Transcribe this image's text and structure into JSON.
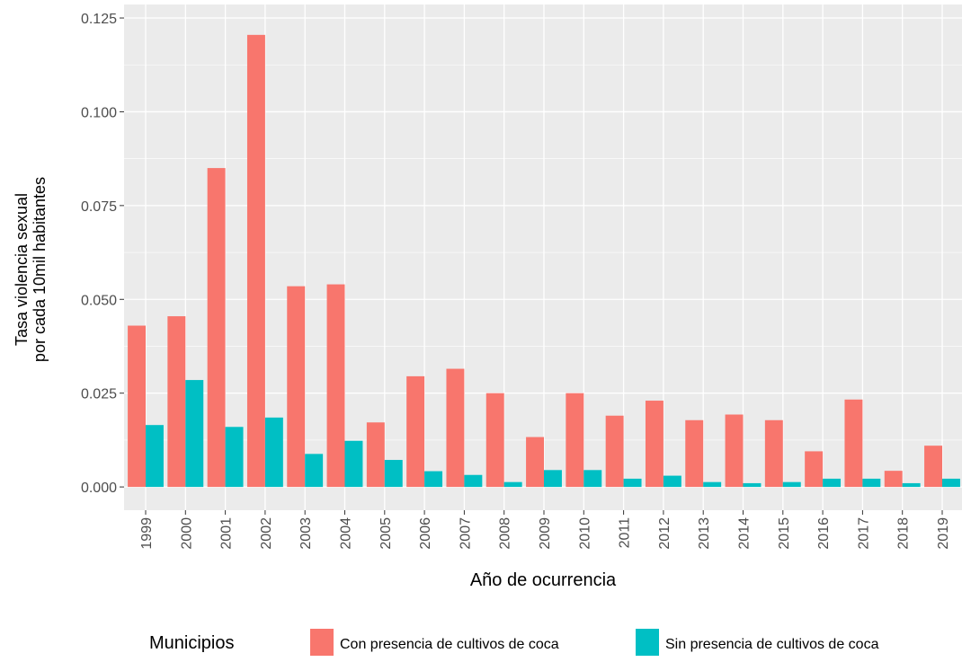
{
  "chart_data": {
    "type": "bar",
    "y_axis_label": [
      "Tasa violencia sexual",
      "por cada 10mil habitantes"
    ],
    "x_axis_label": "Año de ocurrencia",
    "legend_title": "Municipios",
    "legend_position": "bottom",
    "grid": true,
    "categories": [
      "1999",
      "2000",
      "2001",
      "2002",
      "2003",
      "2004",
      "2005",
      "2006",
      "2007",
      "2008",
      "2009",
      "2010",
      "2011",
      "2012",
      "2013",
      "2014",
      "2015",
      "2016",
      "2017",
      "2018",
      "2019"
    ],
    "series": [
      {
        "name": "Con presencia de cultivos de coca",
        "color": "#f8766d",
        "values": [
          0.043,
          0.0455,
          0.085,
          0.1205,
          0.0535,
          0.054,
          0.0172,
          0.0295,
          0.0315,
          0.025,
          0.0133,
          0.025,
          0.019,
          0.023,
          0.0178,
          0.0193,
          0.0178,
          0.0095,
          0.0233,
          0.0043,
          0.011
        ]
      },
      {
        "name": "Sin presencia de cultivos de coca",
        "color": "#00bfc4",
        "values": [
          0.0165,
          0.0285,
          0.016,
          0.0185,
          0.0088,
          0.0123,
          0.0072,
          0.0042,
          0.0032,
          0.0013,
          0.0045,
          0.0045,
          0.0022,
          0.003,
          0.0013,
          0.001,
          0.0013,
          0.0022,
          0.0022,
          0.001,
          0.0022
        ]
      }
    ],
    "ylim": [
      -0.0062,
      0.1286
    ],
    "yticks": [
      {
        "value": 0,
        "label": "0.000"
      },
      {
        "value": 0.025,
        "label": "0.025"
      },
      {
        "value": 0.05,
        "label": "0.050"
      },
      {
        "value": 0.075,
        "label": "0.075"
      },
      {
        "value": 0.1,
        "label": "0.100"
      },
      {
        "value": 0.125,
        "label": "0.125"
      }
    ]
  }
}
